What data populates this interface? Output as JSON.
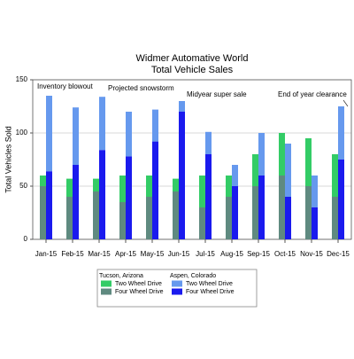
{
  "chart_data": {
    "type": "grouped-stacked-bar",
    "title": "Widmer Automative World",
    "subtitle": "Total Vehicle Sales",
    "y_label": "Total Vehicles Sold",
    "categories": [
      "Jan-15",
      "Feb-15",
      "Mar-15",
      "Apr-15",
      "May-15",
      "Jun-15",
      "Jul-15",
      "Aug-15",
      "Sep-15",
      "Oct-15",
      "Nov-15",
      "Dec-15"
    ],
    "groups": [
      {
        "name": "Tucson, Arizona",
        "series": [
          {
            "name": "Two Wheel Drive",
            "color": "#33cc66",
            "values": [
              10,
              17,
              12,
              25,
              20,
              12,
              30,
              20,
              30,
              40,
              45,
              40
            ]
          },
          {
            "name": "Four Wheel Drive",
            "color": "#5f8a80",
            "values": [
              50,
              40,
              45,
              35,
              40,
              45,
              30,
              40,
              50,
              60,
              50,
              40
            ]
          }
        ]
      },
      {
        "name": "Aspen, Colorado",
        "series": [
          {
            "name": "Two Wheel Drive",
            "color": "#6699ee",
            "values": [
              71,
              54,
              50,
              42,
              30,
              10,
              21,
              20,
              40,
              50,
              30,
              50
            ]
          },
          {
            "name": "Four Wheel Drive",
            "color": "#1a1aee",
            "values": [
              64,
              70,
              84,
              78,
              92,
              120,
              80,
              50,
              60,
              40,
              30,
              75
            ]
          }
        ]
      }
    ],
    "annotations": [
      "Inventory blowout",
      "Projected snowstorm",
      "Midyear super sale",
      "End of year clearance"
    ],
    "ylim": [
      0,
      150
    ],
    "yticks": [
      0,
      50,
      100,
      150
    ],
    "grid": true
  }
}
